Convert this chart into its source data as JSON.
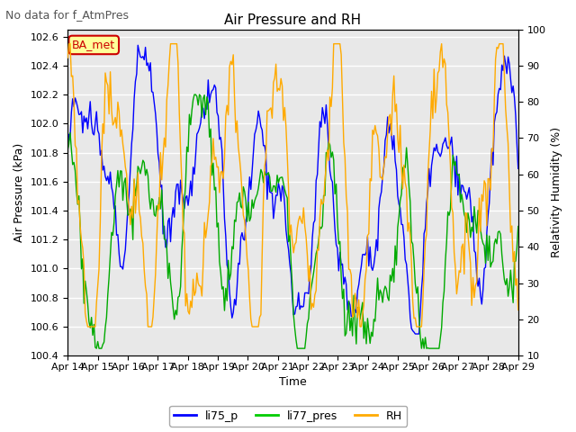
{
  "title": "Air Pressure and RH",
  "subtitle": "No data for f_AtmPres",
  "xlabel": "Time",
  "ylabel_left": "Air Pressure (kPa)",
  "ylabel_right": "Relativity Humidity (%)",
  "ylim_left": [
    100.4,
    102.65
  ],
  "ylim_right": [
    10,
    100
  ],
  "yticks_left": [
    100.4,
    100.6,
    100.8,
    101.0,
    101.2,
    101.4,
    101.6,
    101.8,
    102.0,
    102.2,
    102.4,
    102.6
  ],
  "yticks_right": [
    10,
    20,
    30,
    40,
    50,
    60,
    70,
    80,
    90,
    100
  ],
  "xtick_labels": [
    "Apr 14",
    "Apr 15",
    "Apr 16",
    "Apr 17",
    "Apr 18",
    "Apr 19",
    "Apr 20",
    "Apr 21",
    "Apr 22",
    "Apr 23",
    "Apr 24",
    "Apr 25",
    "Apr 26",
    "Apr 27",
    "Apr 28",
    "Apr 29"
  ],
  "legend_labels": [
    "li75_p",
    "li77_pres",
    "RH"
  ],
  "legend_colors": [
    "#0000ff",
    "#00cc00",
    "#ffaa00"
  ],
  "line_colors": [
    "#0000ff",
    "#00aa00",
    "#ffaa00"
  ],
  "plot_bg_color": "#e8e8e8",
  "annotation_text": "BA_met",
  "annotation_color": "#cc0000",
  "annotation_bg": "#ffff99",
  "figsize": [
    6.4,
    4.8
  ],
  "dpi": 100
}
